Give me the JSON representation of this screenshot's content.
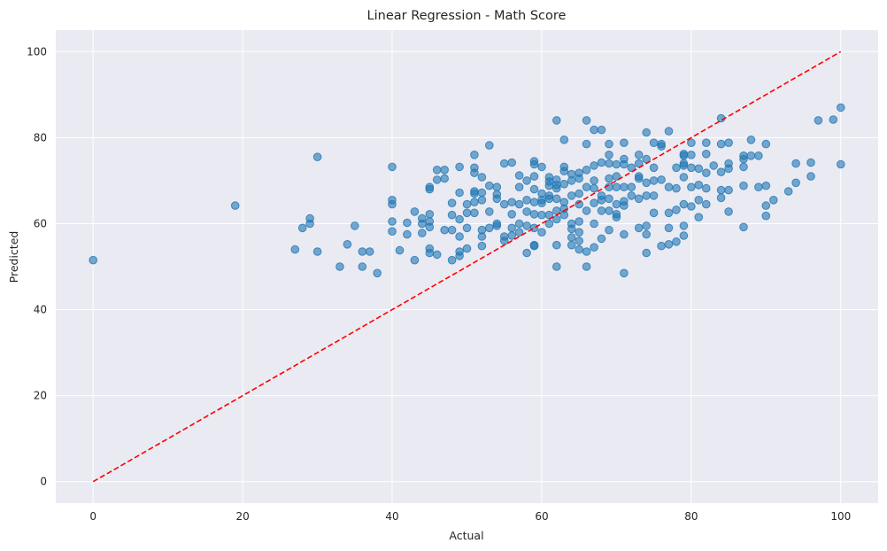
{
  "chart_data": {
    "type": "scatter",
    "title": "Linear Regression - Math Score",
    "xlabel": "Actual",
    "ylabel": "Predicted",
    "xlim": [
      -5,
      105
    ],
    "ylim": [
      -5,
      105
    ],
    "x_ticks": [
      0,
      20,
      40,
      60,
      80,
      100
    ],
    "y_ticks": [
      0,
      20,
      40,
      60,
      80,
      100
    ],
    "grid": true,
    "colors": {
      "background": "#eaeaf2",
      "grid": "#ffffff",
      "points": "#1f77b4",
      "reference_line": "#ff0000"
    },
    "reference_line": {
      "x": [
        0,
        100
      ],
      "y": [
        0,
        100
      ],
      "style": "dashed"
    },
    "series": [
      {
        "points": [
          [
            0,
            51.5
          ],
          [
            19,
            64.2
          ],
          [
            27,
            54.0
          ],
          [
            28,
            59.0
          ],
          [
            29,
            61.2
          ],
          [
            29,
            60.0
          ],
          [
            30,
            75.5
          ],
          [
            30,
            53.5
          ],
          [
            33,
            50.0
          ],
          [
            34,
            55.2
          ],
          [
            35,
            59.5
          ],
          [
            36,
            53.5
          ],
          [
            36,
            50.0
          ],
          [
            37,
            53.5
          ],
          [
            38,
            48.5
          ],
          [
            40,
            73.2
          ],
          [
            40,
            65.5
          ],
          [
            40,
            64.5
          ],
          [
            40,
            60.5
          ],
          [
            40,
            58.2
          ],
          [
            41,
            53.8
          ],
          [
            42,
            60.2
          ],
          [
            42,
            57.5
          ],
          [
            43,
            62.8
          ],
          [
            43,
            51.5
          ],
          [
            44,
            61.2
          ],
          [
            44,
            57.8
          ],
          [
            44,
            60.0
          ],
          [
            45,
            68.5
          ],
          [
            45,
            68.0
          ],
          [
            45,
            62.2
          ],
          [
            45,
            60.5
          ],
          [
            45,
            59.2
          ],
          [
            45,
            54.2
          ],
          [
            45,
            53.2
          ],
          [
            46,
            72.5
          ],
          [
            46,
            70.2
          ],
          [
            46,
            52.8
          ],
          [
            47,
            72.5
          ],
          [
            47,
            70.5
          ],
          [
            47,
            58.5
          ],
          [
            48,
            64.8
          ],
          [
            48,
            62.0
          ],
          [
            48,
            58.5
          ],
          [
            48,
            51.5
          ],
          [
            49,
            73.2
          ],
          [
            49,
            67.2
          ],
          [
            49,
            61.0
          ],
          [
            49,
            57.0
          ],
          [
            49,
            53.5
          ],
          [
            49,
            52.5
          ],
          [
            50,
            64.5
          ],
          [
            50,
            62.5
          ],
          [
            50,
            59.0
          ],
          [
            50,
            54.2
          ],
          [
            51,
            76.0
          ],
          [
            51,
            73.0
          ],
          [
            51,
            71.8
          ],
          [
            51,
            67.5
          ],
          [
            51,
            67.0
          ],
          [
            51,
            65.0
          ],
          [
            51,
            62.5
          ],
          [
            52,
            70.8
          ],
          [
            52,
            67.2
          ],
          [
            52,
            65.5
          ],
          [
            52,
            58.5
          ],
          [
            52,
            57.0
          ],
          [
            52,
            54.8
          ],
          [
            53,
            78.2
          ],
          [
            53,
            68.8
          ],
          [
            53,
            62.8
          ],
          [
            53,
            59.0
          ],
          [
            54,
            68.5
          ],
          [
            54,
            66.8
          ],
          [
            54,
            65.8
          ],
          [
            54,
            60.0
          ],
          [
            54,
            59.5
          ],
          [
            55,
            74.0
          ],
          [
            55,
            64.5
          ],
          [
            55,
            57.0
          ],
          [
            55,
            56.0
          ],
          [
            56,
            74.2
          ],
          [
            56,
            65.0
          ],
          [
            56,
            62.2
          ],
          [
            56,
            59.0
          ],
          [
            56,
            57.2
          ],
          [
            57,
            71.2
          ],
          [
            57,
            68.5
          ],
          [
            57,
            64.5
          ],
          [
            57,
            60.0
          ],
          [
            57,
            58.0
          ],
          [
            58,
            70.0
          ],
          [
            58,
            65.5
          ],
          [
            58,
            62.8
          ],
          [
            58,
            59.5
          ],
          [
            58,
            53.2
          ],
          [
            59,
            74.5
          ],
          [
            59,
            73.8
          ],
          [
            59,
            71.0
          ],
          [
            59,
            68.0
          ],
          [
            59,
            65.0
          ],
          [
            59,
            62.2
          ],
          [
            59,
            59.0
          ],
          [
            59,
            55.0
          ],
          [
            59,
            54.8
          ],
          [
            60,
            73.2
          ],
          [
            60,
            67.0
          ],
          [
            60,
            65.5
          ],
          [
            60,
            64.8
          ],
          [
            60,
            62.0
          ],
          [
            60,
            58.0
          ],
          [
            61,
            70.8
          ],
          [
            61,
            69.8
          ],
          [
            61,
            68.8
          ],
          [
            61,
            66.5
          ],
          [
            61,
            65.8
          ],
          [
            61,
            62.0
          ],
          [
            61,
            60.0
          ],
          [
            62,
            84.0
          ],
          [
            62,
            70.2
          ],
          [
            62,
            69.0
          ],
          [
            62,
            68.2
          ],
          [
            62,
            65.8
          ],
          [
            62,
            63.0
          ],
          [
            62,
            61.0
          ],
          [
            62,
            55.0
          ],
          [
            62,
            50.0
          ],
          [
            63,
            79.5
          ],
          [
            63,
            73.2
          ],
          [
            63,
            72.2
          ],
          [
            63,
            69.2
          ],
          [
            63,
            65.0
          ],
          [
            63,
            63.5
          ],
          [
            63,
            62.0
          ],
          [
            64,
            71.5
          ],
          [
            64,
            70.0
          ],
          [
            64,
            66.5
          ],
          [
            64,
            60.0
          ],
          [
            64,
            58.8
          ],
          [
            64,
            56.8
          ],
          [
            64,
            55.0
          ],
          [
            65,
            71.8
          ],
          [
            65,
            70.5
          ],
          [
            65,
            67.0
          ],
          [
            65,
            64.5
          ],
          [
            65,
            60.5
          ],
          [
            65,
            58.0
          ],
          [
            65,
            56.0
          ],
          [
            65,
            54.0
          ],
          [
            66,
            84.0
          ],
          [
            66,
            78.5
          ],
          [
            66,
            72.5
          ],
          [
            66,
            68.5
          ],
          [
            66,
            63.0
          ],
          [
            66,
            53.5
          ],
          [
            66,
            50.0
          ],
          [
            67,
            81.8
          ],
          [
            67,
            73.5
          ],
          [
            67,
            70.0
          ],
          [
            67,
            68.2
          ],
          [
            67,
            64.8
          ],
          [
            67,
            60.0
          ],
          [
            67,
            54.5
          ],
          [
            68,
            81.8
          ],
          [
            68,
            74.2
          ],
          [
            68,
            66.5
          ],
          [
            68,
            65.5
          ],
          [
            68,
            63.0
          ],
          [
            68,
            56.5
          ],
          [
            69,
            78.5
          ],
          [
            69,
            76.0
          ],
          [
            69,
            74.0
          ],
          [
            69,
            70.5
          ],
          [
            69,
            68.5
          ],
          [
            69,
            65.8
          ],
          [
            69,
            63.0
          ],
          [
            69,
            58.5
          ],
          [
            70,
            73.8
          ],
          [
            70,
            71.0
          ],
          [
            70,
            68.5
          ],
          [
            70,
            64.5
          ],
          [
            70,
            62.2
          ],
          [
            70,
            61.5
          ],
          [
            71,
            78.8
          ],
          [
            71,
            75.0
          ],
          [
            71,
            73.8
          ],
          [
            71,
            68.5
          ],
          [
            71,
            65.2
          ],
          [
            71,
            64.2
          ],
          [
            71,
            57.5
          ],
          [
            71,
            48.5
          ],
          [
            72,
            73.0
          ],
          [
            72,
            68.5
          ],
          [
            72,
            66.5
          ],
          [
            73,
            76.0
          ],
          [
            73,
            74.0
          ],
          [
            73,
            71.0
          ],
          [
            73,
            70.5
          ],
          [
            73,
            65.8
          ],
          [
            73,
            59.0
          ],
          [
            74,
            81.2
          ],
          [
            74,
            75.0
          ],
          [
            74,
            69.5
          ],
          [
            74,
            66.5
          ],
          [
            74,
            59.5
          ],
          [
            74,
            57.5
          ],
          [
            74,
            53.2
          ],
          [
            75,
            78.8
          ],
          [
            75,
            73.0
          ],
          [
            75,
            70.0
          ],
          [
            75,
            66.5
          ],
          [
            75,
            62.5
          ],
          [
            76,
            78.5
          ],
          [
            76,
            78.0
          ],
          [
            76,
            70.2
          ],
          [
            76,
            54.8
          ],
          [
            77,
            81.5
          ],
          [
            77,
            68.5
          ],
          [
            77,
            62.5
          ],
          [
            77,
            59.0
          ],
          [
            77,
            55.2
          ],
          [
            78,
            73.0
          ],
          [
            78,
            68.2
          ],
          [
            78,
            63.2
          ],
          [
            78,
            55.8
          ],
          [
            79,
            76.2
          ],
          [
            79,
            75.8
          ],
          [
            79,
            74.0
          ],
          [
            79,
            73.5
          ],
          [
            79,
            70.8
          ],
          [
            79,
            64.5
          ],
          [
            79,
            59.5
          ],
          [
            79,
            57.2
          ],
          [
            80,
            78.8
          ],
          [
            80,
            76.0
          ],
          [
            80,
            73.0
          ],
          [
            80,
            68.5
          ],
          [
            80,
            64.0
          ],
          [
            81,
            72.8
          ],
          [
            81,
            69.0
          ],
          [
            81,
            65.5
          ],
          [
            81,
            61.5
          ],
          [
            82,
            78.8
          ],
          [
            82,
            76.2
          ],
          [
            82,
            71.8
          ],
          [
            82,
            68.2
          ],
          [
            82,
            64.5
          ],
          [
            83,
            73.5
          ],
          [
            84,
            84.5
          ],
          [
            84,
            78.5
          ],
          [
            84,
            72.0
          ],
          [
            84,
            67.8
          ],
          [
            84,
            66.0
          ],
          [
            85,
            78.8
          ],
          [
            85,
            74.0
          ],
          [
            85,
            72.8
          ],
          [
            85,
            67.8
          ],
          [
            85,
            62.8
          ],
          [
            87,
            75.8
          ],
          [
            87,
            75.0
          ],
          [
            87,
            73.2
          ],
          [
            87,
            68.8
          ],
          [
            87,
            59.2
          ],
          [
            88,
            79.5
          ],
          [
            88,
            75.8
          ],
          [
            89,
            75.8
          ],
          [
            89,
            68.5
          ],
          [
            90,
            78.5
          ],
          [
            90,
            68.8
          ],
          [
            90,
            64.2
          ],
          [
            90,
            61.8
          ],
          [
            91,
            65.5
          ],
          [
            93,
            67.5
          ],
          [
            94,
            74.0
          ],
          [
            94,
            69.5
          ],
          [
            96,
            74.2
          ],
          [
            96,
            71.0
          ],
          [
            97,
            84.0
          ],
          [
            99,
            84.2
          ],
          [
            100,
            87.0
          ],
          [
            100,
            73.8
          ]
        ]
      }
    ]
  }
}
